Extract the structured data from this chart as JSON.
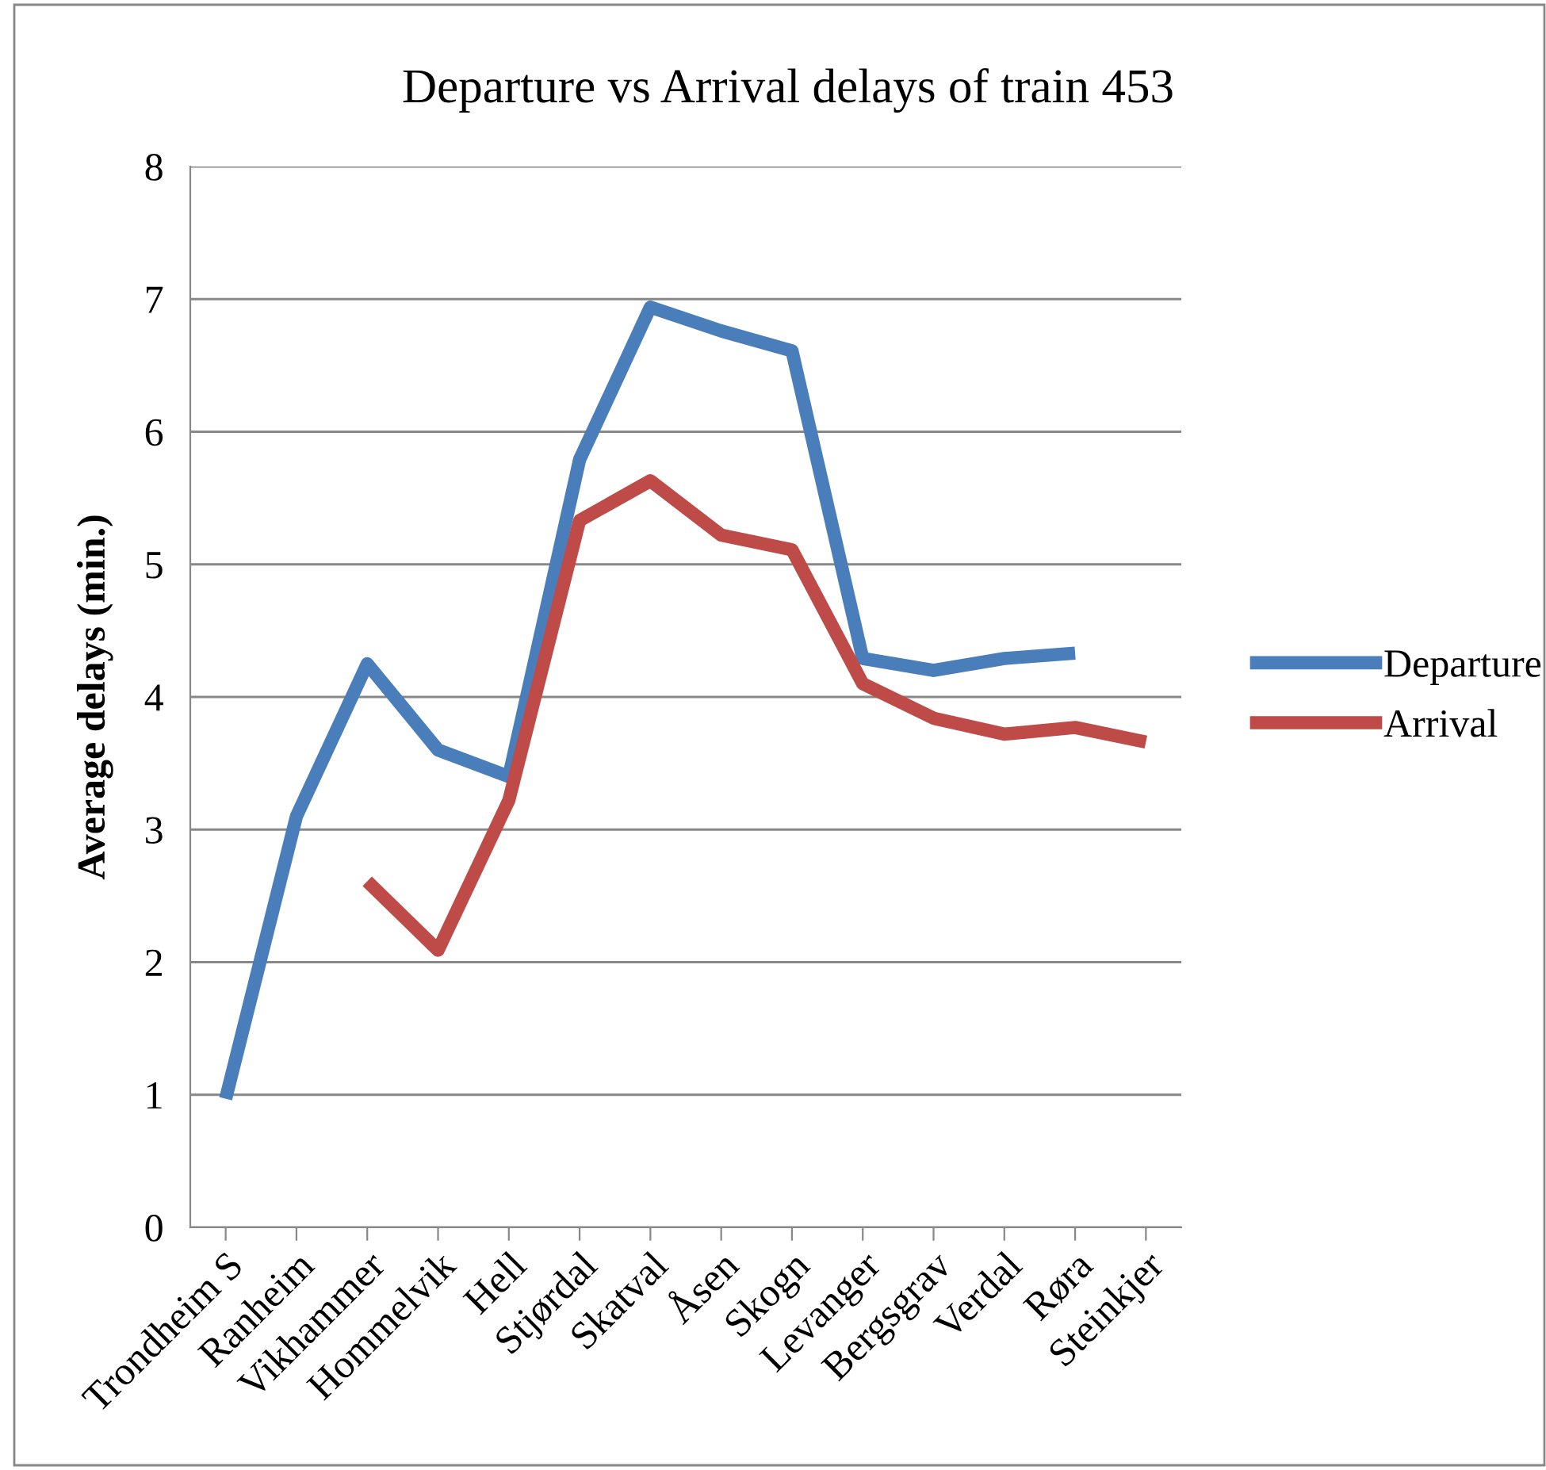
{
  "chart_data": {
    "type": "line",
    "title": "Departure vs Arrival delays of train 453",
    "ylabel": "Average delays (min.)",
    "categories": [
      "Trondheim S",
      "Ranheim",
      "Vikhammer",
      "Hommelvik",
      "Hell",
      "Stjørdal",
      "Skatval",
      "Åsen",
      "Skogn",
      "Levanger",
      "Bergsgrav",
      "Verdal",
      "Røra",
      "Steinkjer"
    ],
    "series": [
      {
        "name": "Departure",
        "color": "#4a7ebb",
        "values": [
          0.97,
          3.1,
          4.25,
          3.6,
          3.4,
          5.79,
          6.94,
          6.76,
          6.61,
          4.29,
          4.2,
          4.29,
          4.33,
          null
        ]
      },
      {
        "name": "Arrival",
        "color": "#be4b48",
        "values": [
          null,
          null,
          2.61,
          2.09,
          3.22,
          5.33,
          5.63,
          5.22,
          5.11,
          4.1,
          3.84,
          3.72,
          3.77,
          3.66
        ]
      }
    ],
    "ylim": [
      0,
      8
    ],
    "yticks": [
      0,
      1,
      2,
      3,
      4,
      5,
      6,
      7,
      8
    ],
    "grid": "y",
    "legend": "right",
    "marker": "none",
    "line_style": "solid"
  }
}
